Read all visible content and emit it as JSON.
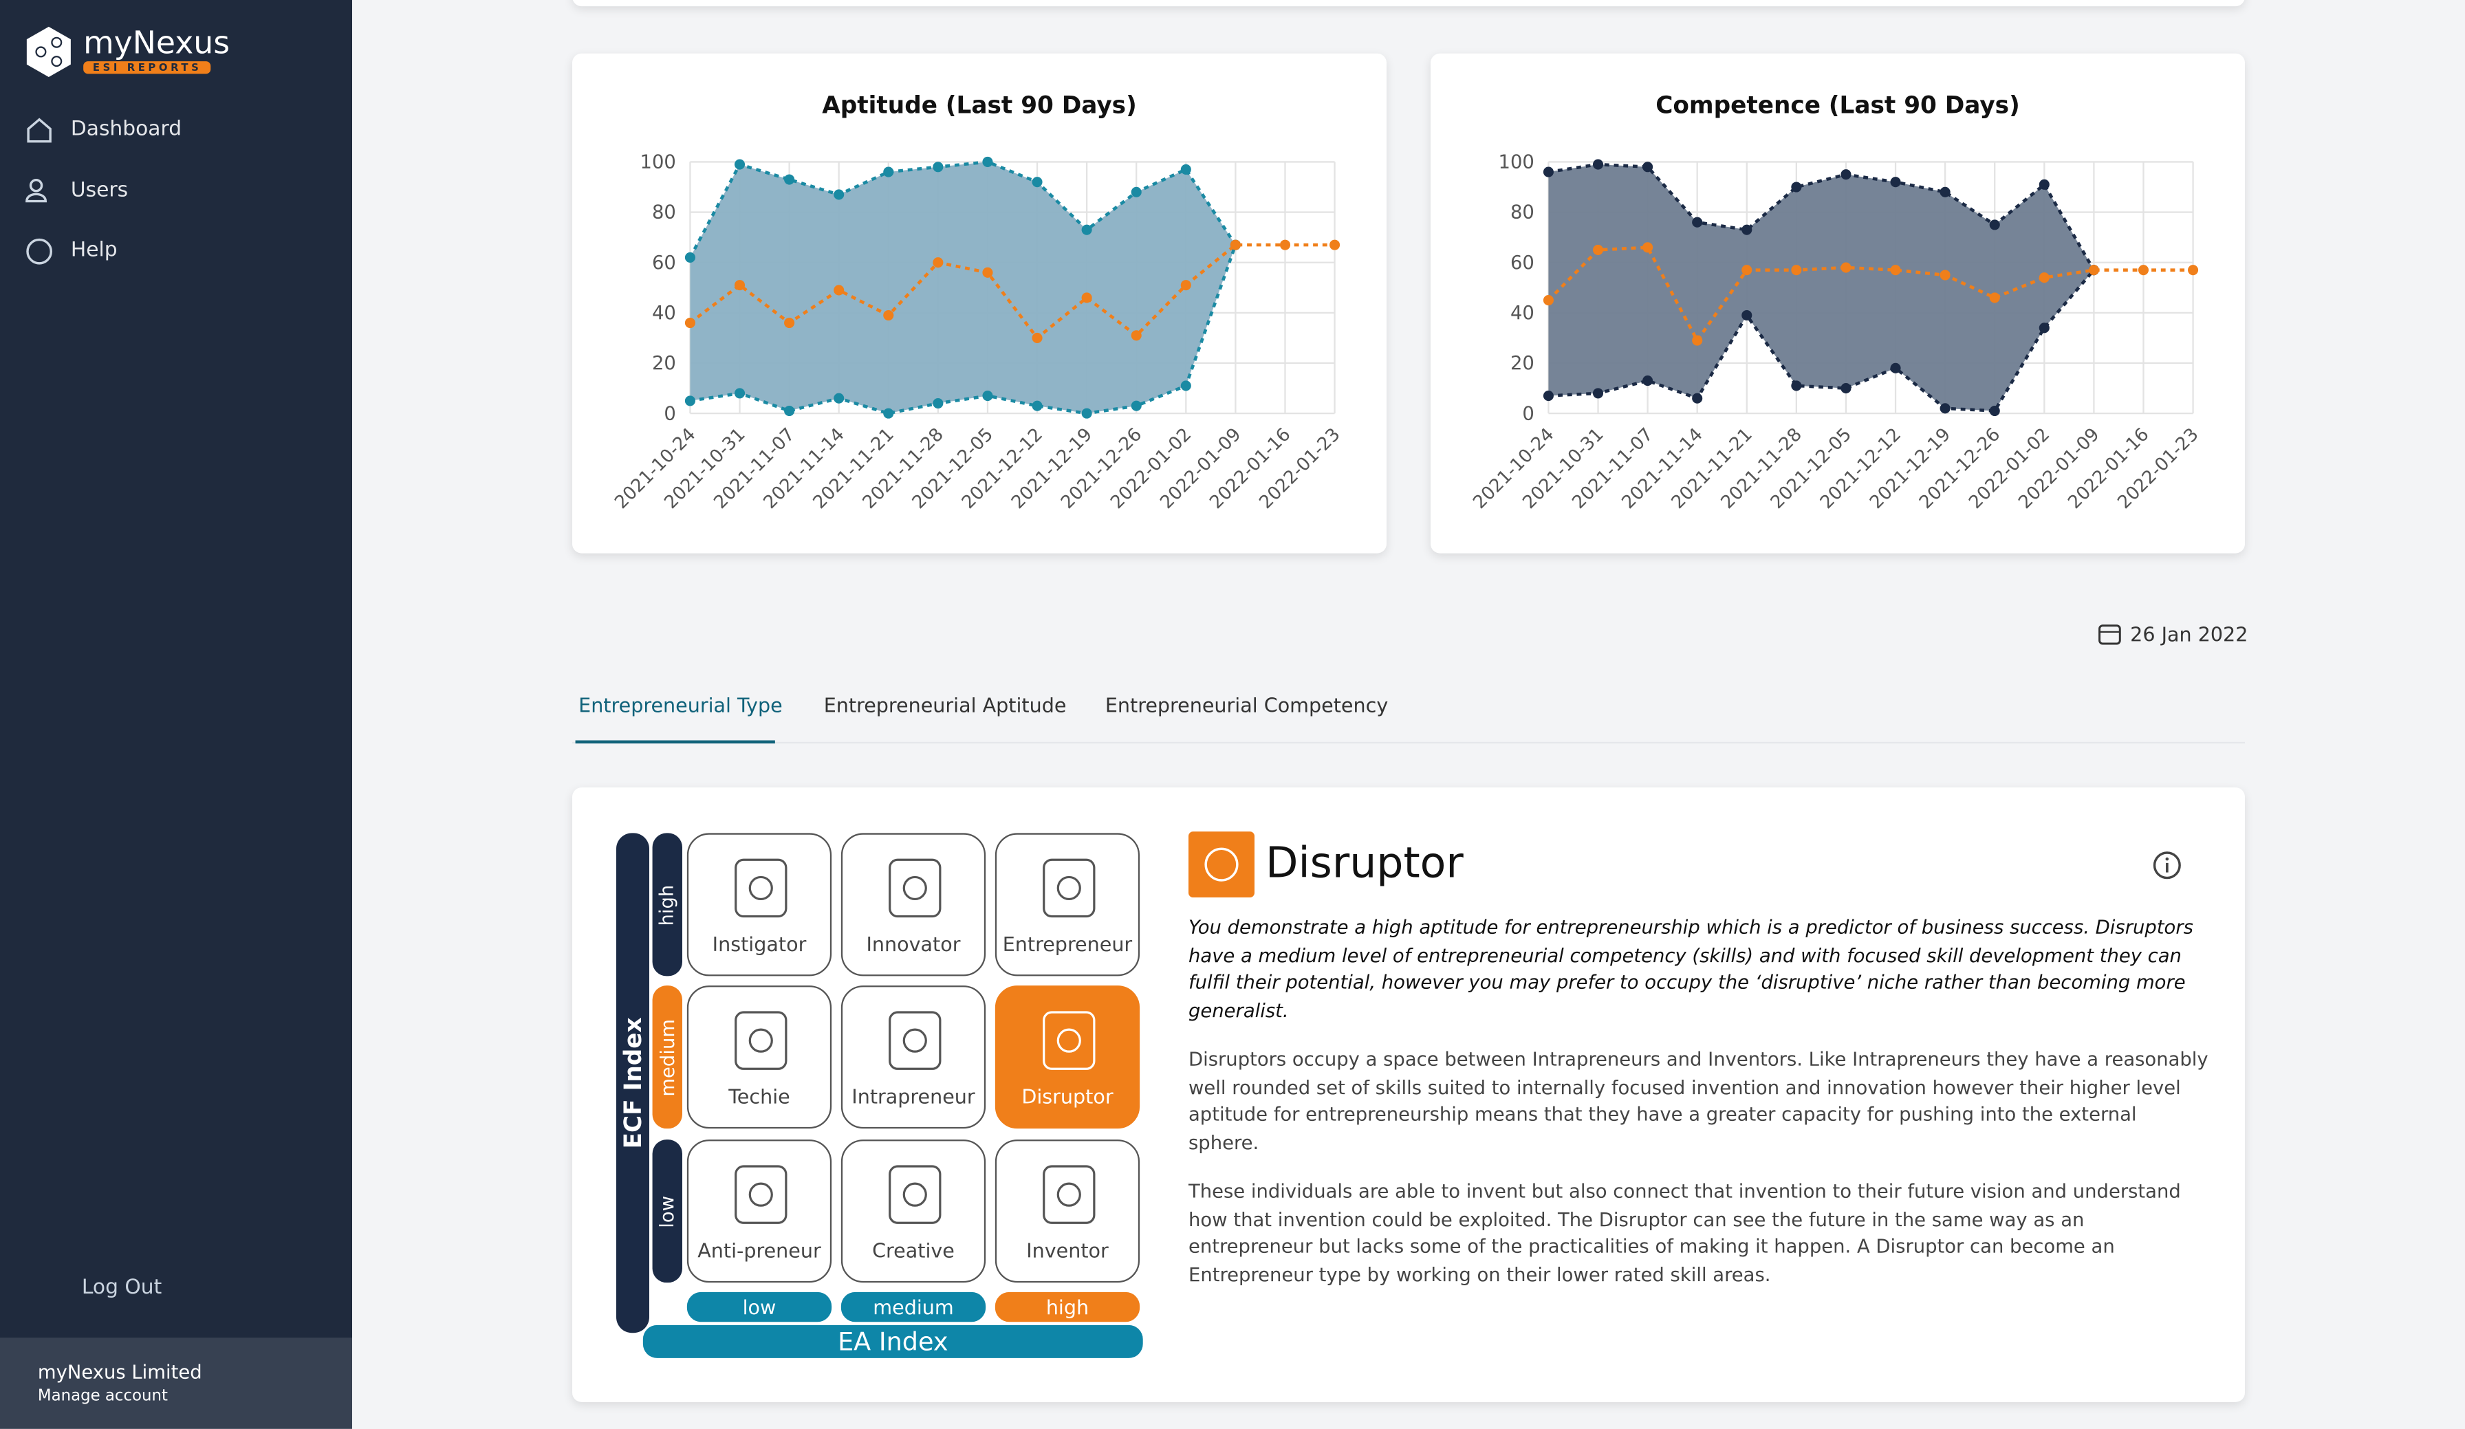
{
  "sidebar": {
    "brand": "myNexus",
    "brand_sub": "ESI REPORTS",
    "nav": [
      "Dashboard",
      "Users",
      "Help"
    ],
    "logout": "Log Out",
    "account_name": "myNexus Limited",
    "account_link": "Manage account"
  },
  "chart_data": [
    {
      "type": "line",
      "title": "Aptitude (Last 90 Days)",
      "categories": [
        "2021-10-24",
        "2021-10-31",
        "2021-11-07",
        "2021-11-14",
        "2021-11-21",
        "2021-11-28",
        "2021-12-05",
        "2021-12-12",
        "2021-12-19",
        "2021-12-26",
        "2022-01-02",
        "2022-01-09",
        "2022-01-16",
        "2022-01-23"
      ],
      "series": [
        {
          "color": "#1a8aa3",
          "values": [
            62,
            99,
            93,
            87,
            96,
            98,
            100,
            92,
            73,
            88,
            97,
            67,
            null,
            null
          ]
        },
        {
          "color": "#1a8aa3",
          "values": [
            5,
            8,
            1,
            6,
            0,
            4,
            7,
            3,
            0,
            3,
            11,
            67,
            null,
            null
          ]
        },
        {
          "color": "#f07f1a",
          "values": [
            36,
            51,
            36,
            49,
            39,
            60,
            56,
            30,
            46,
            31,
            51,
            67,
            67,
            67
          ]
        }
      ],
      "area_fill": "#8ab0c4",
      "ylim": [
        0,
        100
      ],
      "yticks": [
        0,
        20,
        40,
        60,
        80,
        100
      ],
      "grid": true
    },
    {
      "type": "line",
      "title": "Competence (Last 90 Days)",
      "categories": [
        "2021-10-24",
        "2021-10-31",
        "2021-11-07",
        "2021-11-14",
        "2021-11-21",
        "2021-11-28",
        "2021-12-05",
        "2021-12-12",
        "2021-12-19",
        "2021-12-26",
        "2022-01-02",
        "2022-01-09",
        "2022-01-16",
        "2022-01-23"
      ],
      "series": [
        {
          "color": "#1b2a45",
          "values": [
            96,
            99,
            98,
            76,
            73,
            90,
            95,
            92,
            88,
            75,
            91,
            57,
            null,
            null
          ]
        },
        {
          "color": "#1b2a45",
          "values": [
            7,
            8,
            13,
            6,
            39,
            11,
            10,
            18,
            2,
            1,
            34,
            57,
            null,
            null
          ]
        },
        {
          "color": "#f07f1a",
          "values": [
            45,
            65,
            66,
            29,
            57,
            57,
            58,
            57,
            55,
            46,
            54,
            57,
            57,
            57
          ]
        }
      ],
      "area_fill": "#6f7d91",
      "ylim": [
        0,
        100
      ],
      "yticks": [
        0,
        20,
        40,
        60,
        80,
        100
      ],
      "grid": true
    }
  ],
  "date": "26 Jan 2022",
  "tabs": [
    "Entrepreneurial Type",
    "Entrepreneurial Aptitude",
    "Entrepreneurial Competency"
  ],
  "type_grid": {
    "y_axis": "ECF Index",
    "y_levels": [
      "high",
      "medium",
      "low"
    ],
    "x_axis": "EA Index",
    "x_levels": [
      "low",
      "medium",
      "high"
    ],
    "cells": [
      [
        "Instigator",
        "Innovator",
        "Entrepreneur"
      ],
      [
        "Techie",
        "Intrapreneur",
        "Disruptor"
      ],
      [
        "Anti-preneur",
        "Creative",
        "Inventor"
      ]
    ]
  },
  "result": {
    "title": "Disruptor",
    "summary": "You demonstrate a high aptitude for entrepreneurship which is a predictor of business success. Disruptors have a medium level of entrepreneurial competency (skills) and with focused skill development they can fulfil their potential, however you may prefer to occupy the ‘disruptive’ niche rather than becoming more generalist.",
    "paragraphs": [
      "Disruptors occupy a space between Intrapreneurs and Inventors. Like Intrapreneurs they have a reasonably well rounded set of skills suited to internally focused invention and innovation however their higher level aptitude for entrepreneurship means that they have a greater capacity for pushing into the external sphere.",
      "These individuals are able to invent but also connect that invention to their future vision and understand how that invention could be exploited. The Disruptor can see the future in the same way as an entrepreneur but lacks some of the practicalities of making it happen. A Disruptor can become an Entrepreneur type by working on their lower rated skill areas."
    ]
  }
}
